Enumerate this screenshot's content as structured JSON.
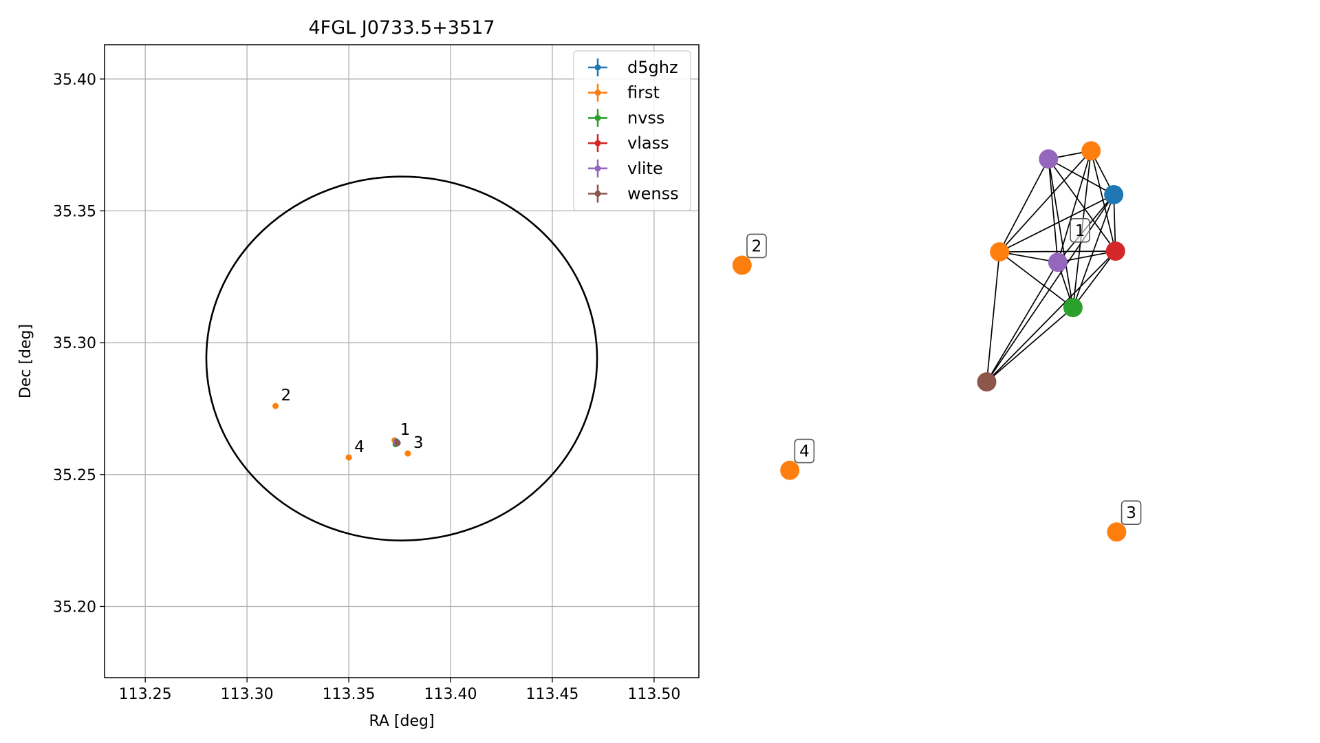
{
  "colors": {
    "d5ghz": "#1f77b4",
    "first": "#ff7f0e",
    "nvss": "#2ca02c",
    "vlass": "#d62728",
    "vlite": "#9467bd",
    "wenss": "#8c564b",
    "grid": "#b0b0b0",
    "axes": "#000000"
  },
  "chart_data": [
    {
      "type": "scatter",
      "title": "4FGL J0733.5+3517",
      "xlabel": "RA [deg]",
      "ylabel": "Dec [deg]",
      "xlim": [
        113.23,
        113.522
      ],
      "ylim": [
        35.173,
        35.413
      ],
      "grid": true,
      "legend_position": "upper-right",
      "xticks": [
        {
          "value": 113.25,
          "label": "113.25"
        },
        {
          "value": 113.3,
          "label": "113.30"
        },
        {
          "value": 113.35,
          "label": "113.35"
        },
        {
          "value": 113.4,
          "label": "113.40"
        },
        {
          "value": 113.45,
          "label": "113.45"
        },
        {
          "value": 113.5,
          "label": "113.50"
        }
      ],
      "yticks": [
        {
          "value": 35.2,
          "label": "35.20"
        },
        {
          "value": 35.25,
          "label": "35.25"
        },
        {
          "value": 35.3,
          "label": "35.30"
        },
        {
          "value": 35.35,
          "label": "35.35"
        },
        {
          "value": 35.4,
          "label": "35.40"
        }
      ],
      "legend": [
        {
          "key": "d5ghz",
          "label": "d5ghz"
        },
        {
          "key": "first",
          "label": "first"
        },
        {
          "key": "nvss",
          "label": "nvss"
        },
        {
          "key": "vlass",
          "label": "vlass"
        },
        {
          "key": "vlite",
          "label": "vlite"
        },
        {
          "key": "wenss",
          "label": "wenss"
        }
      ],
      "ellipse": {
        "center_ra": 113.376,
        "center_dec": 35.294,
        "semi_ra": 0.096,
        "semi_dec": 0.069
      },
      "points": [
        {
          "survey": "first",
          "ra": 113.314,
          "dec": 35.276
        },
        {
          "survey": "first",
          "ra": 113.35,
          "dec": 35.2565
        },
        {
          "survey": "first",
          "ra": 113.379,
          "dec": 35.258
        },
        {
          "survey": "first",
          "ra": 113.3725,
          "dec": 35.263
        },
        {
          "survey": "d5ghz",
          "ra": 113.3735,
          "dec": 35.2625
        },
        {
          "survey": "vlass",
          "ra": 113.3735,
          "dec": 35.262
        },
        {
          "survey": "nvss",
          "ra": 113.373,
          "dec": 35.2615
        },
        {
          "survey": "vlite",
          "ra": 113.3735,
          "dec": 35.262
        },
        {
          "survey": "wenss",
          "ra": 113.374,
          "dec": 35.262
        }
      ],
      "labels": [
        {
          "text": "1",
          "ra": 113.3725,
          "dec": 35.263
        },
        {
          "text": "2",
          "ra": 113.314,
          "dec": 35.276
        },
        {
          "text": "3",
          "ra": 113.379,
          "dec": 35.258
        },
        {
          "text": "4",
          "ra": 113.35,
          "dec": 35.2565
        }
      ]
    },
    {
      "type": "network",
      "nodes": [
        {
          "id": "a",
          "survey": "vlite",
          "x": 0.534,
          "y": 0.214
        },
        {
          "id": "b",
          "survey": "first",
          "x": 0.607,
          "y": 0.203
        },
        {
          "id": "c",
          "survey": "d5ghz",
          "x": 0.646,
          "y": 0.262
        },
        {
          "id": "d",
          "survey": "vlass",
          "x": 0.649,
          "y": 0.338
        },
        {
          "id": "e",
          "survey": "first",
          "x": 0.45,
          "y": 0.339
        },
        {
          "id": "f",
          "survey": "vlite",
          "x": 0.55,
          "y": 0.353
        },
        {
          "id": "g",
          "survey": "nvss",
          "x": 0.576,
          "y": 0.414
        },
        {
          "id": "h",
          "survey": "wenss",
          "x": 0.428,
          "y": 0.514
        },
        {
          "id": "n2",
          "survey": "first",
          "x": 0.008,
          "y": 0.357
        },
        {
          "id": "n4",
          "survey": "first",
          "x": 0.09,
          "y": 0.633
        },
        {
          "id": "n3",
          "survey": "first",
          "x": 0.651,
          "y": 0.716
        }
      ],
      "edges": [
        [
          "a",
          "b"
        ],
        [
          "a",
          "c"
        ],
        [
          "a",
          "d"
        ],
        [
          "a",
          "e"
        ],
        [
          "a",
          "f"
        ],
        [
          "a",
          "g"
        ],
        [
          "b",
          "c"
        ],
        [
          "b",
          "d"
        ],
        [
          "b",
          "e"
        ],
        [
          "b",
          "f"
        ],
        [
          "b",
          "g"
        ],
        [
          "c",
          "d"
        ],
        [
          "c",
          "e"
        ],
        [
          "c",
          "f"
        ],
        [
          "c",
          "g"
        ],
        [
          "c",
          "h"
        ],
        [
          "d",
          "e"
        ],
        [
          "d",
          "f"
        ],
        [
          "d",
          "g"
        ],
        [
          "d",
          "h"
        ],
        [
          "e",
          "f"
        ],
        [
          "e",
          "g"
        ],
        [
          "e",
          "h"
        ],
        [
          "f",
          "g"
        ],
        [
          "f",
          "h"
        ],
        [
          "g",
          "h"
        ]
      ],
      "labels": [
        {
          "text": "1",
          "anchor": "f",
          "dx": 0.038,
          "dy": -0.043
        },
        {
          "text": "2",
          "anchor": "n2",
          "dx": 0.025,
          "dy": -0.026
        },
        {
          "text": "4",
          "anchor": "n4",
          "dx": 0.025,
          "dy": -0.026
        },
        {
          "text": "3",
          "anchor": "n3",
          "dx": 0.025,
          "dy": -0.026
        }
      ]
    }
  ]
}
